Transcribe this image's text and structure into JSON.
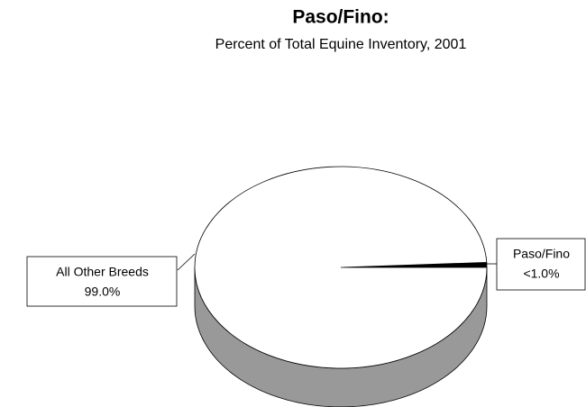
{
  "chart_data": {
    "type": "pie",
    "title": "Paso/Fino:",
    "subtitle": "Percent of Total Equine Inventory, 2001",
    "categories": [
      "Paso/Fino",
      "All Other Breeds"
    ],
    "values": [
      0.8,
      99.0
    ],
    "value_labels": [
      "<1.0%",
      "99.0%"
    ],
    "colors": [
      "#000000",
      "#ffffff"
    ]
  }
}
